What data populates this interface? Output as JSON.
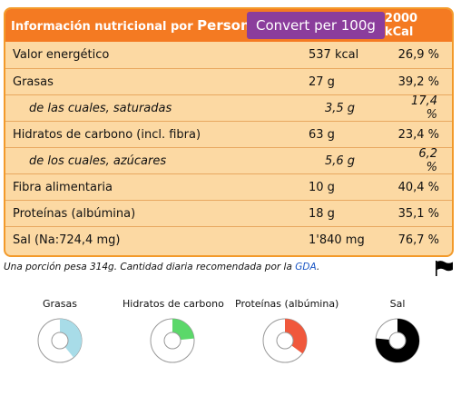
{
  "header": {
    "title": "Información nutricional por",
    "person": "Person",
    "convert_button": "Convert per 100g",
    "reference": "2000 kCal"
  },
  "rows": [
    {
      "label": "Valor energético",
      "value": "537 kcal",
      "percent": "26,9 %",
      "sub": false
    },
    {
      "label": "Grasas",
      "value": "27 g",
      "percent": "39,2 %",
      "sub": false
    },
    {
      "label": "de las cuales, saturadas",
      "value": "3,5 g",
      "percent": "17,4 %",
      "sub": true
    },
    {
      "label": "Hidratos de carbono (incl. fibra)",
      "value": "63 g",
      "percent": "23,4 %",
      "sub": false
    },
    {
      "label": "de los cuales, azúcares",
      "value": "5,6 g",
      "percent": "6,2 %",
      "sub": true
    },
    {
      "label": "Fibra alimentaria",
      "value": "10 g",
      "percent": "40,4 %",
      "sub": false
    },
    {
      "label": "Proteínas (albúmina)",
      "value": "18 g",
      "percent": "35,1 %",
      "sub": false
    },
    {
      "label": "Sal (Na:724,4 mg)",
      "value": "1'840 mg",
      "percent": "76,7 %",
      "sub": false
    }
  ],
  "footnote": {
    "prefix": "Una porción pesa 314g.   Cantidad diaria recomendada por la",
    "link": "GDA",
    "suffix": "."
  },
  "gauges": [
    {
      "label": "Grasas",
      "fraction": 0.392,
      "color": "#a8dce8"
    },
    {
      "label": "Hidratos de carbono",
      "fraction": 0.234,
      "color": "#5bd86a"
    },
    {
      "label": "Proteínas (albúmina)",
      "fraction": 0.351,
      "color": "#f0583c"
    },
    {
      "label": "Sal",
      "fraction": 0.767,
      "color": "#000000"
    }
  ],
  "icons": {
    "flag": "flag-icon"
  }
}
